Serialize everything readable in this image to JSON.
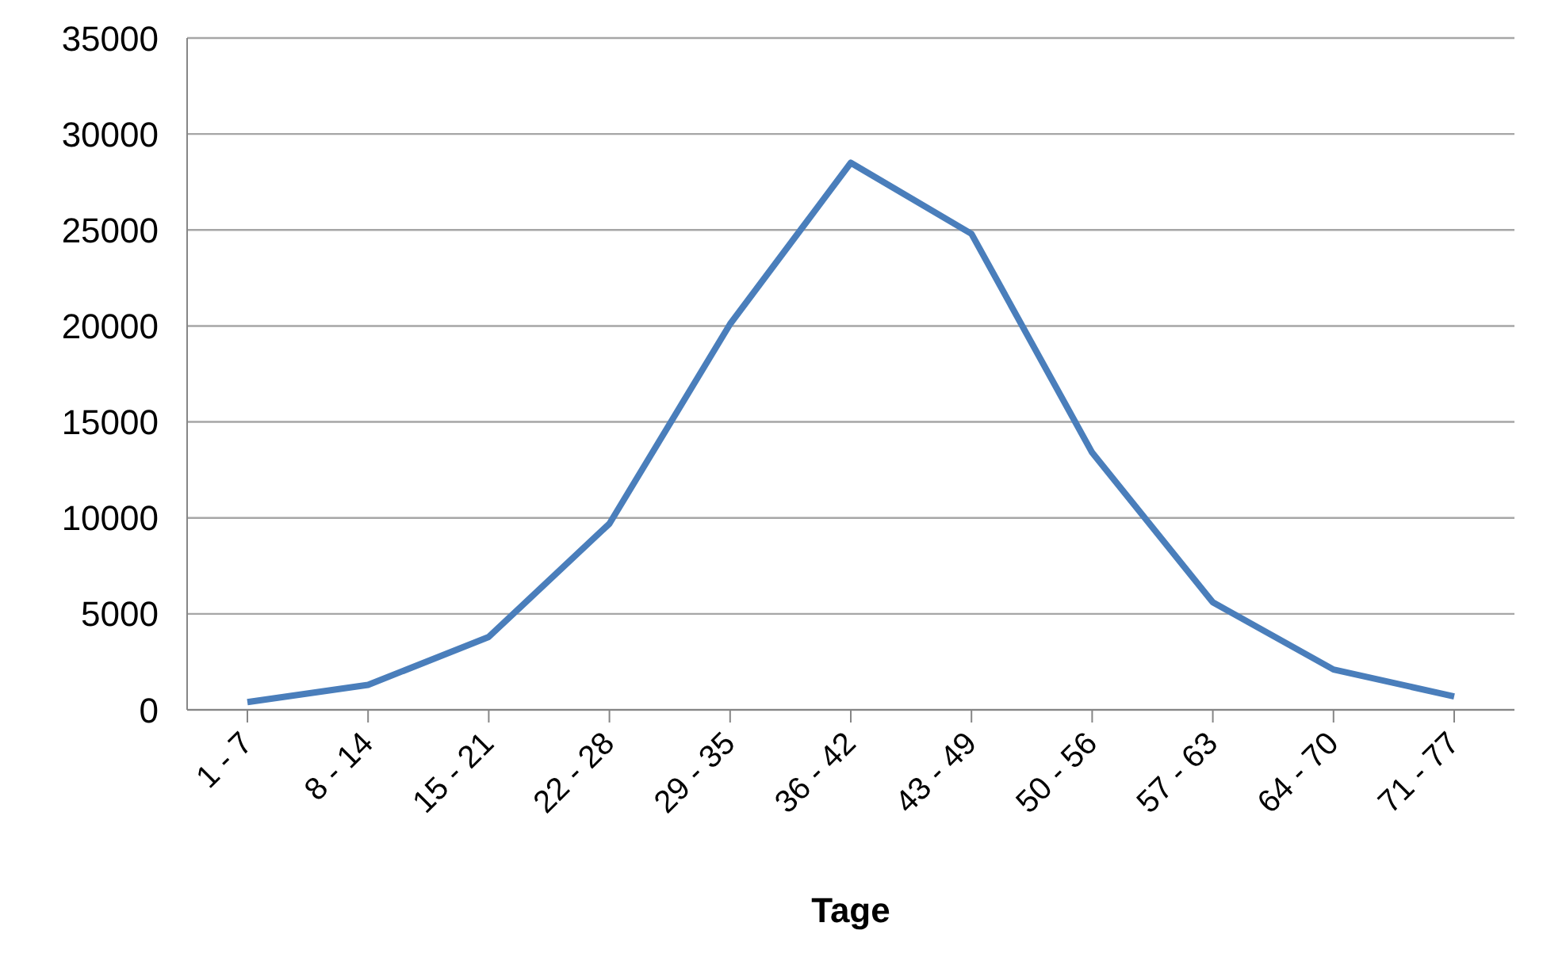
{
  "chart_data": {
    "type": "line",
    "xlabel": "Tage",
    "categories": [
      "1 - 7",
      "8 - 14",
      "15 - 21",
      "22 - 28",
      "29 - 35",
      "36 - 42",
      "43 - 49",
      "50 - 56",
      "57 - 63",
      "64 - 70",
      "71 - 77"
    ],
    "series": [
      {
        "color": "#4a7ebb",
        "values": [
          400,
          1300,
          3800,
          9700,
          20100,
          28500,
          24800,
          13400,
          5600,
          2100,
          700
        ]
      }
    ],
    "ylim": [
      0,
      35000
    ],
    "yticks": [
      0,
      5000,
      10000,
      15000,
      20000,
      25000,
      30000,
      35000
    ],
    "grid": "y",
    "legend": false,
    "marker": "none",
    "line_style": "solid"
  }
}
